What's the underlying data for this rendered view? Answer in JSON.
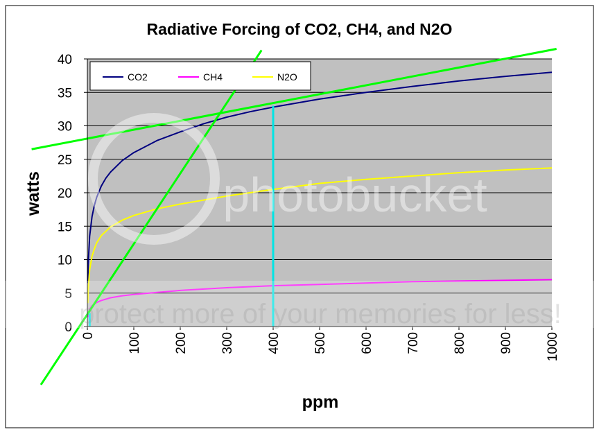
{
  "chart_data": {
    "type": "line",
    "title": "Radiative Forcing of CO2, CH4, and N2O",
    "xlabel": "ppm",
    "ylabel": "watts",
    "xlim": [
      0,
      1000
    ],
    "ylim": [
      0,
      40
    ],
    "x_ticks": [
      0,
      100,
      200,
      300,
      400,
      500,
      600,
      700,
      800,
      900,
      1000
    ],
    "x_tick_labels": [
      "0",
      "100",
      "200",
      "300",
      "400",
      "500",
      "600",
      "700",
      "800",
      "900",
      "1000"
    ],
    "y_ticks": [
      0,
      5,
      10,
      15,
      20,
      25,
      30,
      35,
      40
    ],
    "y_tick_labels": [
      "0",
      "5",
      "10",
      "15",
      "20",
      "25",
      "30",
      "35",
      "40"
    ],
    "grid": "horizontal",
    "legend_position": "top-left",
    "plot_background": "#c0c0c0",
    "series": [
      {
        "name": "CO2",
        "color": "#000080",
        "x": [
          1,
          2,
          5,
          10,
          15,
          20,
          30,
          40,
          50,
          75,
          100,
          150,
          200,
          250,
          300,
          350,
          400,
          500,
          600,
          700,
          800,
          900,
          1000
        ],
        "y": [
          6.5,
          9.5,
          13.5,
          16.4,
          18.1,
          19.3,
          21.0,
          22.2,
          23.1,
          24.8,
          26.0,
          27.8,
          29.1,
          30.3,
          31.3,
          32.1,
          32.8,
          34.0,
          35.0,
          35.9,
          36.7,
          37.4,
          38.0
        ]
      },
      {
        "name": "CH4",
        "color": "#ff00ff",
        "x": [
          1,
          2,
          5,
          10,
          20,
          30,
          50,
          75,
          100,
          150,
          200,
          300,
          400,
          500,
          600,
          700,
          800,
          900,
          1000
        ],
        "y": [
          1.4,
          1.9,
          2.6,
          3.1,
          3.6,
          3.9,
          4.3,
          4.6,
          4.8,
          5.1,
          5.4,
          5.8,
          6.1,
          6.3,
          6.5,
          6.7,
          6.8,
          6.9,
          7.0
        ]
      },
      {
        "name": "N2O",
        "color": "#ffff00",
        "x": [
          1,
          2,
          5,
          10,
          15,
          20,
          30,
          50,
          75,
          100,
          150,
          200,
          250,
          300,
          350,
          400,
          500,
          600,
          700,
          800,
          900,
          1000
        ],
        "y": [
          3.5,
          5.5,
          8.5,
          10.5,
          11.6,
          12.5,
          13.6,
          14.9,
          15.9,
          16.6,
          17.6,
          18.3,
          18.9,
          19.5,
          20.0,
          20.5,
          21.4,
          22.0,
          22.5,
          23.0,
          23.4,
          23.7
        ]
      }
    ],
    "annotations": [
      {
        "type": "line",
        "color": "#00ff00",
        "from": [
          -120,
          26.5
        ],
        "to": [
          1010,
          41.5
        ]
      },
      {
        "type": "line",
        "color": "#00ff00",
        "from": [
          -100,
          -8.7
        ],
        "to": [
          375,
          41.3
        ]
      },
      {
        "type": "vline",
        "color": "#00e5e5",
        "x": 400,
        "y_from": 0,
        "y_to": 33
      },
      {
        "type": "vline",
        "color": "#00e5e5",
        "x": 5,
        "y_from": 0,
        "y_to": 2
      }
    ]
  },
  "watermark": {
    "brand": "photobucket",
    "tagline": "protect more of your memories for less!"
  }
}
